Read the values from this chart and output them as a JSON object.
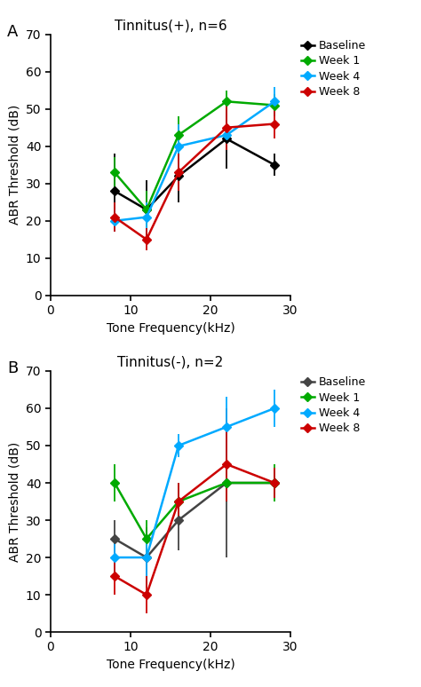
{
  "x_ticks": [
    8,
    12,
    16,
    22,
    28
  ],
  "panel_A": {
    "title": "Tinnitus(+), n=6",
    "series": {
      "Baseline": {
        "color": "#000000",
        "y": [
          28,
          23,
          32,
          42,
          35
        ],
        "yerr": [
          10,
          8,
          7,
          8,
          3
        ]
      },
      "Week 1": {
        "color": "#00aa00",
        "y": [
          33,
          23,
          43,
          52,
          51
        ],
        "yerr": [
          4,
          5,
          5,
          3,
          3
        ]
      },
      "Week 4": {
        "color": "#00aaff",
        "y": [
          20,
          21,
          40,
          43,
          52
        ],
        "yerr": [
          3,
          4,
          6,
          3,
          4
        ]
      },
      "Week 8": {
        "color": "#cc0000",
        "y": [
          21,
          15,
          33,
          45,
          46
        ],
        "yerr": [
          4,
          3,
          5,
          6,
          4
        ]
      }
    }
  },
  "panel_B": {
    "title": "Tinnitus(-), n=2",
    "series": {
      "Baseline": {
        "color": "#444444",
        "y": [
          25,
          20,
          30,
          40,
          40
        ],
        "yerr": [
          5,
          8,
          8,
          20,
          3
        ]
      },
      "Week 1": {
        "color": "#00aa00",
        "y": [
          40,
          25,
          35,
          40,
          40
        ],
        "yerr": [
          5,
          5,
          5,
          5,
          5
        ]
      },
      "Week 4": {
        "color": "#00aaff",
        "y": [
          20,
          20,
          50,
          55,
          60
        ],
        "yerr": [
          5,
          5,
          3,
          8,
          5
        ]
      },
      "Week 8": {
        "color": "#cc0000",
        "y": [
          15,
          10,
          35,
          45,
          40
        ],
        "yerr": [
          5,
          5,
          5,
          10,
          4
        ]
      }
    }
  },
  "xlabel": "Tone Frequency(kHz)",
  "ylabel": "ABR Threshold (dB)",
  "xlim": [
    0,
    30
  ],
  "ylim": [
    0,
    70
  ],
  "yticks": [
    0,
    10,
    20,
    30,
    40,
    50,
    60,
    70
  ],
  "xticks": [
    0,
    10,
    20,
    30
  ],
  "legend_order": [
    "Baseline",
    "Week 1",
    "Week 4",
    "Week 8"
  ],
  "panel_A_label": "A",
  "panel_B_label": "B",
  "marker": "D",
  "markersize": 5,
  "linewidth": 1.8,
  "elinewidth": 1.3,
  "fontsize_title": 11,
  "fontsize_axis": 10,
  "fontsize_legend": 9,
  "fontsize_panel_label": 13
}
